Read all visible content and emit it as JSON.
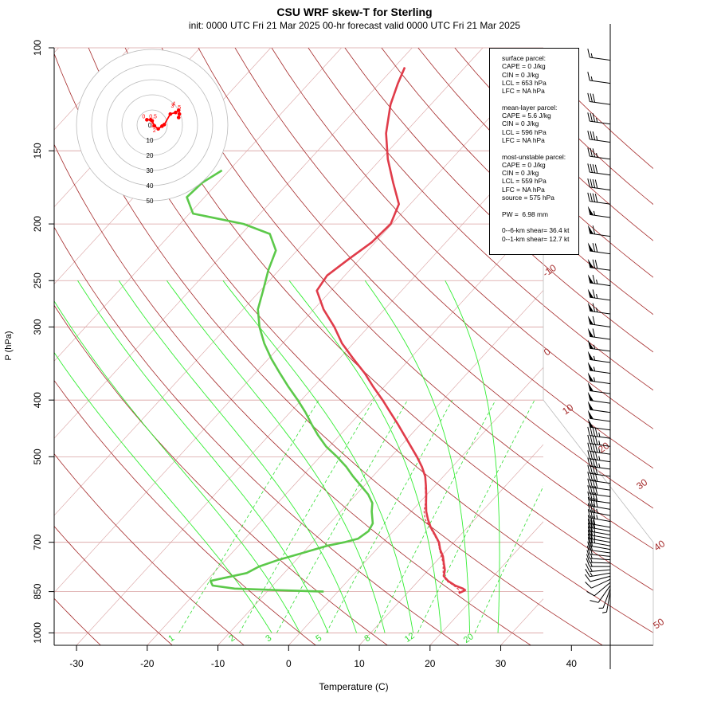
{
  "title": "CSU WRF skew-T for Sterling",
  "subtitle": "init: 0000 UTC Fri 21 Mar 2025     00-hr forecast valid 0000 UTC Fri 21 Mar 2025",
  "colors": {
    "temperature": "#e03c4a",
    "dewpoint": "#5cc94a",
    "dry_adiabat": "#a52a2a",
    "moist_adiabat": "#33ee33",
    "mixing_ratio": "#33dd33",
    "isotherm_grid": "#d9a0a0",
    "hodograph": "#ff0000"
  },
  "stats_box": {
    "surface": [
      "surface parcel:",
      "CAPE = 0 J/kg",
      "CIN = 0 J/kg",
      "LCL = 653 hPa",
      "LFC = NA hPa"
    ],
    "mean_layer": [
      "mean-layer parcel:",
      "CAPE = 5.6 J/kg",
      "CIN = 0 J/kg",
      "LCL = 596 hPa",
      "LFC = NA hPa"
    ],
    "most_unstable": [
      "most-unstable parcel:",
      "CAPE = 0 J/kg",
      "CIN = 0 J/kg",
      "LCL = 559 hPa",
      "LFC = NA hPa",
      "source = 575 hPa"
    ],
    "pw": "PW =  6.98 mm",
    "shear": [
      "0--6-km shear= 36.4 kt",
      "0--1-km shear= 12.7 kt"
    ]
  },
  "chart_data": {
    "type": "line",
    "subtype": "skew-T log-P diagram",
    "title": "CSU WRF skew-T for Sterling",
    "subtitle": "init: 0000 UTC Fri 21 Mar 2025     00-hr forecast valid 0000 UTC Fri 21 Mar 2025",
    "xlabel": "Temperature (C)",
    "ylabel": "P (hPa)",
    "xlim": [
      -33,
      52
    ],
    "ylim": [
      1050,
      100
    ],
    "y_log_scale": true,
    "x_ticks": [
      -30,
      -20,
      -10,
      0,
      10,
      20,
      30,
      40
    ],
    "y_ticks": [
      100,
      150,
      200,
      250,
      300,
      400,
      500,
      700,
      850,
      1000
    ],
    "series": [
      {
        "name": "temperature",
        "points": [
          [
            855,
            17.3
          ],
          [
            850,
            17.6
          ],
          [
            845,
            17.8
          ],
          [
            840,
            17.3
          ],
          [
            830,
            15.8
          ],
          [
            815,
            14.2
          ],
          [
            800,
            13.0
          ],
          [
            780,
            12.3
          ],
          [
            760,
            11.3
          ],
          [
            740,
            10.3
          ],
          [
            720,
            9.0
          ],
          [
            700,
            7.9
          ],
          [
            680,
            6.4
          ],
          [
            660,
            4.8
          ],
          [
            640,
            3.4
          ],
          [
            620,
            2.1
          ],
          [
            600,
            1.0
          ],
          [
            580,
            -0.1
          ],
          [
            560,
            -1.3
          ],
          [
            540,
            -2.6
          ],
          [
            520,
            -4.3
          ],
          [
            500,
            -6.3
          ],
          [
            480,
            -8.5
          ],
          [
            460,
            -10.8
          ],
          [
            440,
            -13.2
          ],
          [
            420,
            -15.8
          ],
          [
            400,
            -18.5
          ],
          [
            380,
            -21.5
          ],
          [
            360,
            -24.5
          ],
          [
            340,
            -28.0
          ],
          [
            320,
            -31.6
          ],
          [
            300,
            -34.8
          ],
          [
            280,
            -38.6
          ],
          [
            260,
            -42.0
          ],
          [
            245,
            -42.5
          ],
          [
            230,
            -41.6
          ],
          [
            215,
            -40.5
          ],
          [
            200,
            -40.2
          ],
          [
            185,
            -41.6
          ],
          [
            170,
            -45.2
          ],
          [
            155,
            -49.0
          ],
          [
            140,
            -52.6
          ],
          [
            125,
            -55.7
          ],
          [
            115,
            -57.4
          ],
          [
            108,
            -58.5
          ]
        ]
      },
      {
        "name": "dewpoint",
        "points": [
          [
            850,
            -2.0
          ],
          [
            845,
            -9.0
          ],
          [
            840,
            -15.0
          ],
          [
            830,
            -18.5
          ],
          [
            815,
            -19.4
          ],
          [
            790,
            -15.3
          ],
          [
            770,
            -14.4
          ],
          [
            750,
            -12.5
          ],
          [
            730,
            -10.0
          ],
          [
            710,
            -7.5
          ],
          [
            700,
            -5.5
          ],
          [
            690,
            -4.0
          ],
          [
            670,
            -3.5
          ],
          [
            650,
            -3.9
          ],
          [
            620,
            -5.6
          ],
          [
            600,
            -6.6
          ],
          [
            580,
            -8.3
          ],
          [
            560,
            -10.5
          ],
          [
            540,
            -12.8
          ],
          [
            520,
            -15.0
          ],
          [
            500,
            -17.6
          ],
          [
            480,
            -20.5
          ],
          [
            460,
            -23.0
          ],
          [
            440,
            -25.4
          ],
          [
            420,
            -27.8
          ],
          [
            400,
            -30.5
          ],
          [
            380,
            -33.5
          ],
          [
            360,
            -36.5
          ],
          [
            340,
            -39.6
          ],
          [
            320,
            -42.6
          ],
          [
            300,
            -45.4
          ],
          [
            280,
            -47.9
          ],
          [
            260,
            -49.6
          ],
          [
            240,
            -51.5
          ],
          [
            222,
            -53.0
          ],
          [
            208,
            -56.0
          ],
          [
            200,
            -61.0
          ],
          [
            192,
            -69.5
          ],
          [
            180,
            -72.5
          ],
          [
            170,
            -72.2
          ],
          [
            162,
            -71.0
          ]
        ]
      },
      {
        "name": "parcel",
        "points": [
          [
            855,
            17.3
          ],
          [
            845,
            17.0
          ],
          [
            830,
            15.6
          ],
          [
            815,
            14.0
          ],
          [
            800,
            12.9
          ],
          [
            760,
            11.2
          ],
          [
            720,
            8.9
          ],
          [
            700,
            7.8
          ],
          [
            660,
            4.7
          ],
          [
            640,
            3.0
          ],
          [
            620,
            1.8
          ],
          [
            600,
            0.9
          ],
          [
            580,
            -0.2
          ],
          [
            560,
            -1.4
          ]
        ]
      }
    ],
    "dry_adiabat_labels": [
      "-10",
      "0",
      "10",
      "20",
      "30",
      "40",
      "50"
    ],
    "mixing_ratio_labels": [
      "1",
      "2",
      "3",
      "5",
      "8",
      "12",
      "20"
    ],
    "wind_profile_kt": [
      [
        850,
        190,
        6
      ],
      [
        840,
        200,
        7
      ],
      [
        830,
        215,
        8
      ],
      [
        820,
        230,
        10
      ],
      [
        810,
        245,
        11
      ],
      [
        800,
        255,
        12
      ],
      [
        790,
        260,
        13
      ],
      [
        780,
        265,
        14
      ],
      [
        770,
        270,
        15
      ],
      [
        760,
        272,
        16
      ],
      [
        750,
        274,
        17
      ],
      [
        740,
        276,
        18
      ],
      [
        730,
        278,
        19
      ],
      [
        720,
        280,
        21
      ],
      [
        710,
        280,
        23
      ],
      [
        700,
        280,
        25
      ],
      [
        690,
        280,
        26
      ],
      [
        680,
        280,
        28
      ],
      [
        670,
        280,
        30
      ],
      [
        660,
        280,
        32
      ],
      [
        645,
        280,
        34
      ],
      [
        630,
        280,
        36
      ],
      [
        615,
        280,
        38
      ],
      [
        600,
        278,
        39
      ],
      [
        585,
        278,
        40
      ],
      [
        570,
        278,
        40
      ],
      [
        555,
        278,
        41
      ],
      [
        540,
        278,
        42
      ],
      [
        525,
        278,
        43
      ],
      [
        510,
        278,
        44
      ],
      [
        495,
        278,
        45
      ],
      [
        480,
        278,
        46
      ],
      [
        465,
        278,
        47
      ],
      [
        450,
        278,
        48
      ],
      [
        435,
        278,
        49
      ],
      [
        420,
        278,
        50
      ],
      [
        405,
        278,
        51
      ],
      [
        390,
        278,
        52
      ],
      [
        375,
        278,
        53
      ],
      [
        360,
        278,
        54
      ],
      [
        345,
        278,
        55
      ],
      [
        330,
        278,
        57
      ],
      [
        315,
        278,
        58
      ],
      [
        300,
        278,
        60
      ],
      [
        285,
        278,
        63
      ],
      [
        270,
        278,
        65
      ],
      [
        255,
        278,
        67
      ],
      [
        240,
        278,
        68
      ],
      [
        225,
        278,
        70
      ],
      [
        210,
        278,
        58
      ],
      [
        195,
        278,
        55
      ],
      [
        185,
        278,
        42
      ],
      [
        175,
        278,
        39
      ],
      [
        165,
        278,
        38
      ],
      [
        155,
        278,
        37
      ],
      [
        145,
        278,
        36
      ],
      [
        135,
        278,
        33
      ],
      [
        125,
        278,
        30
      ],
      [
        115,
        278,
        17
      ],
      [
        105,
        278,
        14
      ]
    ],
    "hodograph": {
      "ring_labels": [
        "0",
        "10",
        "20",
        "30",
        "40",
        "50"
      ],
      "height_labels_km": [
        "0",
        "0.5",
        "1",
        "2",
        "3",
        "4",
        "5"
      ],
      "points_kt": [
        [
          -3.5,
          3.5
        ],
        [
          -1.0,
          3.5
        ],
        [
          0.0,
          2.8
        ],
        [
          1.5,
          -0.5
        ],
        [
          4.0,
          -2.5
        ],
        [
          6.5,
          -0.7
        ],
        [
          8.0,
          0.3
        ],
        [
          12.0,
          7.3
        ],
        [
          15.5,
          8.3
        ],
        [
          17.5,
          9.8
        ],
        [
          18.0,
          7.3
        ],
        [
          17.5,
          5.0
        ]
      ]
    }
  }
}
